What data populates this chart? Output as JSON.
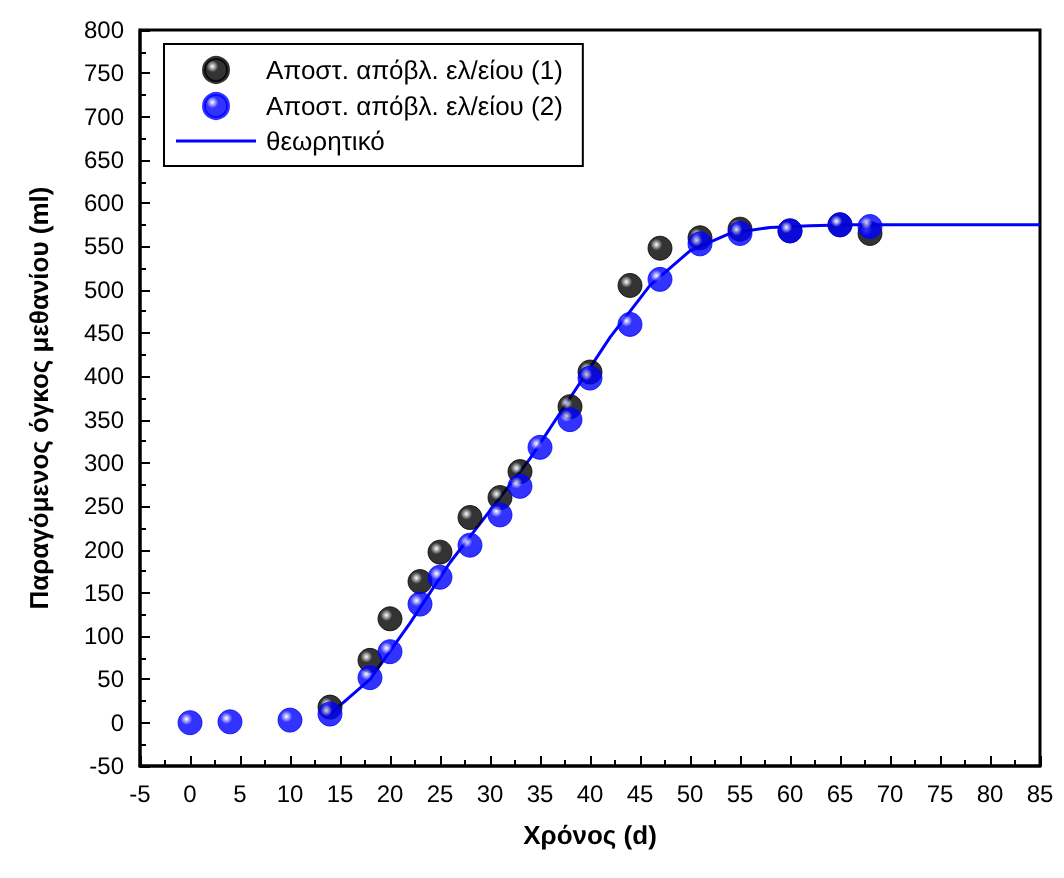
{
  "chart_data": {
    "type": "scatter",
    "xlabel": "Χρόνος (d)",
    "ylabel": "Παραγόμενος όγκος μεθανίου (ml)",
    "xlim": [
      -5,
      85
    ],
    "xticks": [
      -5,
      0,
      5,
      10,
      15,
      20,
      25,
      30,
      35,
      40,
      45,
      50,
      55,
      60,
      65,
      70,
      75,
      80,
      85
    ],
    "ylim": [
      -50,
      800
    ],
    "yticks": [
      -50,
      0,
      50,
      100,
      150,
      200,
      250,
      300,
      350,
      400,
      450,
      500,
      550,
      600,
      650,
      700,
      750,
      800
    ],
    "legend": "top left",
    "marker": "circle",
    "series": [
      {
        "name": "Αποστ. απόβλ. ελ/είου (1)",
        "color": "#000000",
        "x": [
          14,
          18,
          20,
          23,
          25,
          28,
          31,
          33,
          38,
          40,
          44,
          47,
          51,
          55,
          60,
          65,
          68
        ],
        "values": [
          18,
          72,
          120,
          163,
          197,
          237,
          260,
          290,
          365,
          405,
          505,
          548,
          560,
          570,
          568,
          575,
          565
        ]
      },
      {
        "name": "Αποστ. απόβλ. ελ/είου (2)",
        "color": "#0000ff",
        "x": [
          0,
          4,
          10,
          14,
          18,
          20,
          23,
          25,
          28,
          31,
          33,
          35,
          38,
          40,
          44,
          47,
          51,
          55,
          60,
          65,
          68
        ],
        "values": [
          0,
          1,
          3,
          10,
          52,
          82,
          137,
          168,
          205,
          240,
          273,
          318,
          350,
          398,
          460,
          512,
          553,
          565,
          568,
          575,
          573
        ]
      },
      {
        "name": "θεωρητικό",
        "type": "line",
        "color": "#0000ff",
        "line_style": "solid",
        "marker": "none",
        "x": [
          14,
          18,
          22,
          26,
          30,
          34,
          38,
          42,
          46,
          50,
          54,
          58,
          62,
          66,
          70,
          85
        ],
        "values": [
          10,
          50,
          115,
          185,
          245,
          305,
          375,
          445,
          505,
          545,
          565,
          572,
          574,
          575,
          575,
          575
        ]
      }
    ]
  }
}
